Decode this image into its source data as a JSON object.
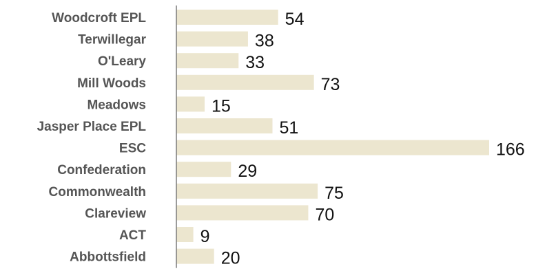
{
  "chart_data": {
    "type": "bar",
    "orientation": "horizontal",
    "categories": [
      "Woodcroft EPL",
      "Terwillegar",
      "O'Leary",
      "Mill Woods",
      "Meadows",
      "Jasper Place EPL",
      "ESC",
      "Confederation",
      "Commonwealth",
      "Clareview",
      "ACT",
      "Abbottsfield"
    ],
    "values": [
      54,
      38,
      33,
      73,
      15,
      51,
      166,
      29,
      75,
      70,
      9,
      20
    ],
    "value_labels": [
      "54",
      "38",
      "33",
      "73",
      "15",
      "51",
      "166",
      "29",
      "75",
      "70",
      "9",
      "20"
    ],
    "title": "",
    "xlabel": "",
    "ylabel": "",
    "xlim": [
      0,
      166
    ],
    "grid": false,
    "legend": "none",
    "colors": {
      "bar": "#ece6cf",
      "axis": "#7a7a7a",
      "category_text": "#555555",
      "value_text": "#111111"
    }
  }
}
